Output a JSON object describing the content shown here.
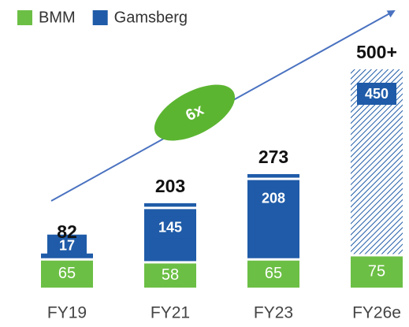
{
  "chart_data": {
    "type": "stacked_bar",
    "categories": [
      "FY19",
      "FY21",
      "FY23",
      "FY26e"
    ],
    "series": [
      {
        "name": "BMM",
        "color": "#6cbf45",
        "values": [
          65,
          58,
          65,
          75
        ]
      },
      {
        "name": "Gamsberg",
        "color": "#1f5ba8",
        "values": [
          17,
          145,
          208,
          450
        ],
        "hatch": [
          false,
          false,
          false,
          true
        ]
      }
    ],
    "totals": {
      "values": [
        82,
        203,
        273,
        500
      ],
      "value_labels": [
        "82",
        "203",
        "273",
        "500+"
      ]
    },
    "annotation": {
      "text": "6x",
      "color": "#5cb531"
    },
    "arrow_color": "#4a72c0"
  }
}
